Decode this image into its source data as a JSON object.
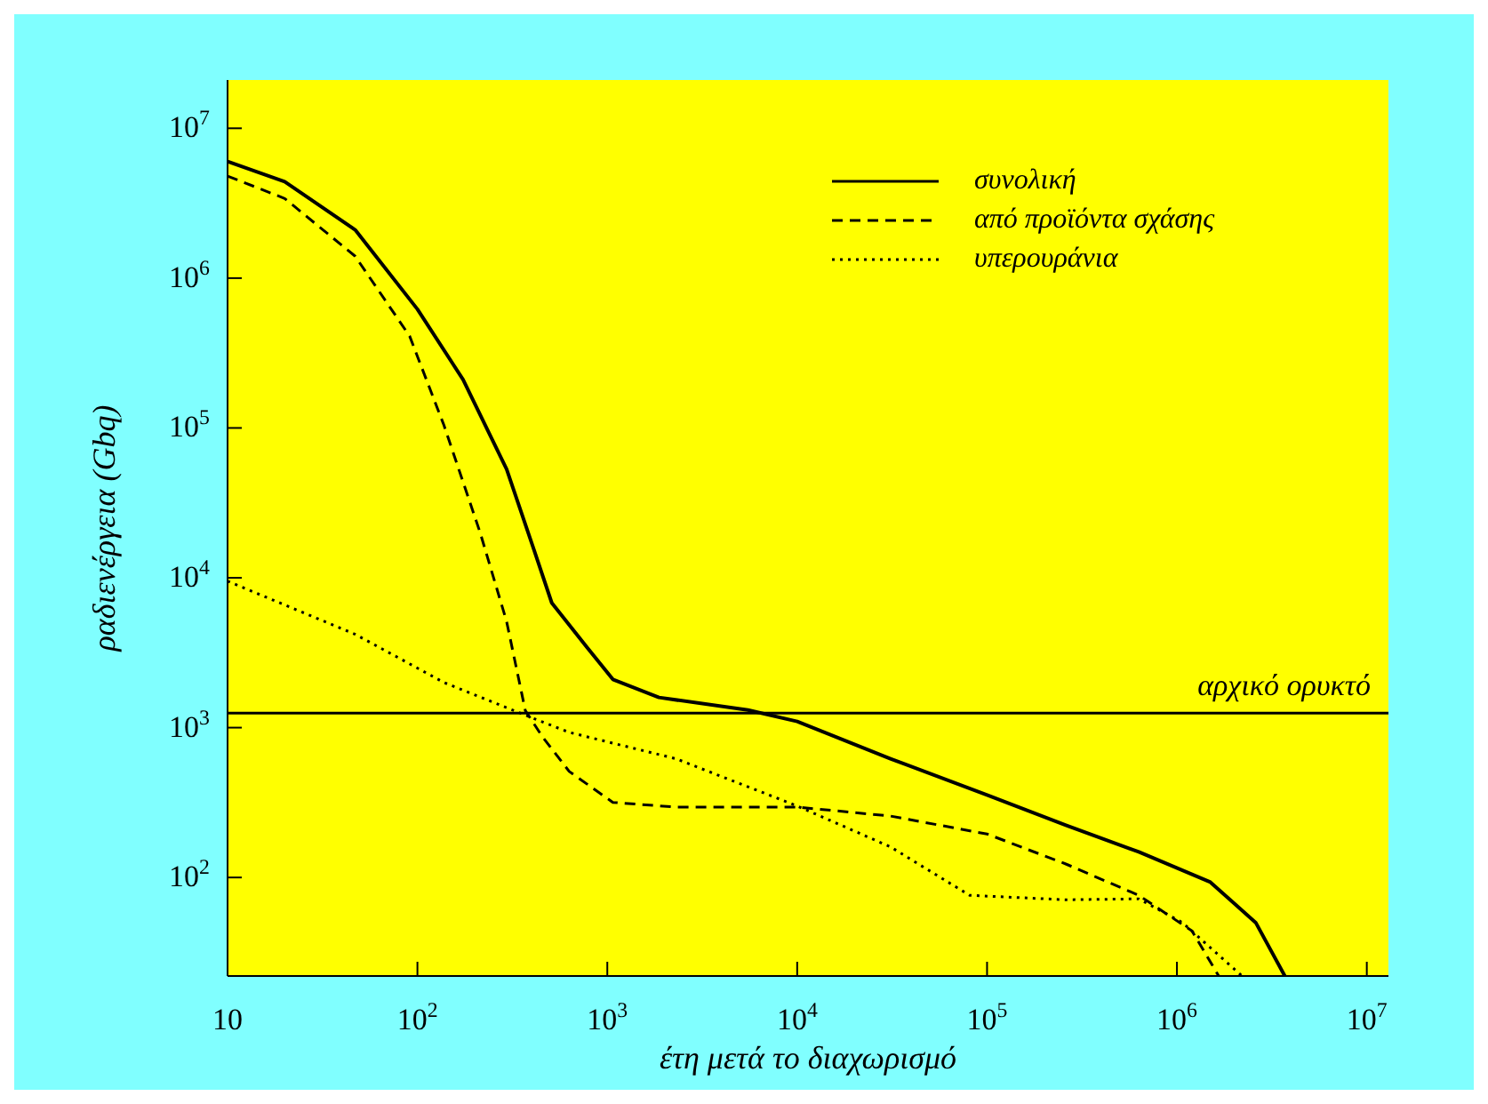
{
  "chart_data": {
    "type": "line",
    "ylabel": "ραδιενέργεια (Gbq)",
    "xlabel": "έτη μετά το διαχωρισμό",
    "log": "xy",
    "grid": false,
    "legend": "top right",
    "marker": "none",
    "xlim": [
      10,
      13000000
    ],
    "ylim": [
      22,
      21000000
    ],
    "xticks": [
      10,
      {
        "value": 100,
        "label": "10$^{2}$"
      },
      {
        "value": 1000,
        "label": "10$^{3}$"
      },
      {
        "value": 10000,
        "label": "10$^{4}$"
      },
      {
        "value": 100000,
        "label": "10$^{5}$"
      },
      {
        "value": 1000000,
        "label": "10$^{6}$"
      },
      {
        "value": 10000000,
        "label": "10$^{7}$"
      }
    ],
    "yticks": [
      {
        "value": 100,
        "label": "10$^{2}$"
      },
      {
        "value": 1000,
        "label": "10$^{3}$"
      },
      {
        "value": 10000,
        "label": "10$^{4}$"
      },
      {
        "value": 100000,
        "label": "10$^{5}$"
      },
      {
        "value": 1000000,
        "label": "10$^{6}$"
      },
      {
        "value": 10000000,
        "label": "10$^{7}$"
      }
    ],
    "ref_lines": [
      {
        "axis": "y",
        "value": 1250,
        "label": "αρχικό ορυκτό",
        "color": "#000000"
      }
    ],
    "series": [
      {
        "name": "συνολική",
        "color": "#000000",
        "line_style": "solid",
        "x": [
          10,
          20,
          47,
          100,
          174,
          295,
          410,
          510,
          780,
          1070,
          1870,
          5500,
          10000,
          31000,
          100000,
          260000,
          630000,
          1500000,
          2600000,
          3700000
        ],
        "values": [
          6000000,
          4400000,
          2100000,
          620000,
          210000,
          53000,
          15500,
          6800,
          3450,
          2100,
          1590,
          1310,
          1100,
          620,
          355,
          223,
          148,
          93,
          50,
          22
        ]
      },
      {
        "name": "από προϊόντα σχάσης",
        "color": "#000000",
        "line_style": "dashed",
        "x": [
          10,
          20,
          47,
          91,
          138,
          214,
          295,
          370,
          455,
          630,
          1070,
          2300,
          10000,
          31000,
          100000,
          260000,
          630000,
          1200000,
          1660000
        ],
        "values": [
          4800000,
          3400000,
          1400000,
          410000,
          104000,
          20000,
          5100,
          1300,
          870,
          510,
          317,
          295,
          295,
          257,
          195,
          123,
          76,
          44,
          22
        ]
      },
      {
        "name": "υπερουράνια",
        "color": "#000000",
        "line_style": "dotted",
        "x": [
          10,
          47,
          138,
          410,
          630,
          2300,
          10000,
          31000,
          81000,
          260000,
          630000,
          1070000,
          2200000
        ],
        "values": [
          9500,
          4200,
          2000,
          1150,
          930,
          620,
          300,
          160,
          76,
          71,
          72,
          50,
          22
        ]
      }
    ]
  }
}
